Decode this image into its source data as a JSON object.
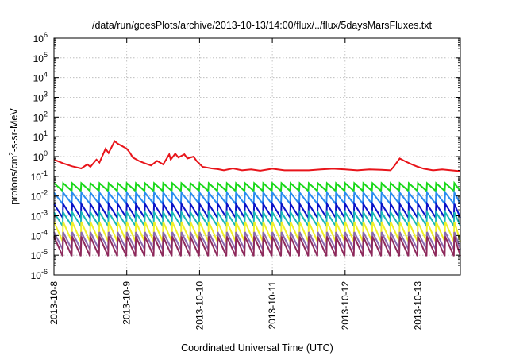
{
  "chart_data": {
    "type": "line",
    "title": "/data/run/goesPlots/archive/2013-10-13/14:00/flux/../flux/5daysMarsFluxes.txt",
    "xlabel": "Coordinated Universal Time (UTC)",
    "ylabel": {
      "prefix": "protons/cm",
      "superscript": "2",
      "suffix": "-s-sr-MeV"
    },
    "x_scale": "time",
    "xlim": [
      "2013-10-08T00:00",
      "2013-10-13T14:00"
    ],
    "x_ticks": [
      "2013-10-8",
      "2013-10-9",
      "2013-10-10",
      "2013-10-11",
      "2013-10-12",
      "2013-10-13"
    ],
    "x_tick_dates": [
      "2013-10-08T00:00",
      "2013-10-09T00:00",
      "2013-10-10T00:00",
      "2013-10-11T00:00",
      "2013-10-12T00:00",
      "2013-10-13T00:00"
    ],
    "y_scale": "log",
    "ylim": [
      1e-06,
      1000000.0
    ],
    "y_tick_exponents": [
      -6,
      -5,
      -4,
      -3,
      -2,
      -1,
      0,
      1,
      2,
      3,
      4,
      5,
      6
    ],
    "y_tick_base": "10",
    "grid": true,
    "legend": "none",
    "series": [
      {
        "color": "#e8141a",
        "x": [
          "2013-10-08T00:00",
          "2013-10-08T03:00",
          "2013-10-08T06:00",
          "2013-10-08T09:00",
          "2013-10-08T11:00",
          "2013-10-08T12:00",
          "2013-10-08T14:00",
          "2013-10-08T15:00",
          "2013-10-08T17:00",
          "2013-10-08T18:00",
          "2013-10-08T20:00",
          "2013-10-08T21:00",
          "2013-10-09T00:00",
          "2013-10-09T01:00",
          "2013-10-09T02:00",
          "2013-10-09T04:00",
          "2013-10-09T06:00",
          "2013-10-09T08:00",
          "2013-10-09T10:00",
          "2013-10-09T12:00",
          "2013-10-09T14:00",
          "2013-10-09T14:30",
          "2013-10-09T16:00",
          "2013-10-09T17:00",
          "2013-10-09T19:00",
          "2013-10-09T20:00",
          "2013-10-09T22:00",
          "2013-10-09T23:00",
          "2013-10-10T01:00",
          "2013-10-10T04:00",
          "2013-10-10T06:00",
          "2013-10-10T08:00",
          "2013-10-10T11:00",
          "2013-10-10T14:00",
          "2013-10-10T17:00",
          "2013-10-10T20:00",
          "2013-10-11T00:00",
          "2013-10-11T04:00",
          "2013-10-11T08:00",
          "2013-10-11T12:00",
          "2013-10-11T16:00",
          "2013-10-11T20:00",
          "2013-10-12T00:00",
          "2013-10-12T04:00",
          "2013-10-12T08:00",
          "2013-10-12T12:00",
          "2013-10-12T15:00",
          "2013-10-12T16:00",
          "2013-10-12T18:00",
          "2013-10-12T20:00",
          "2013-10-12T22:00",
          "2013-10-13T00:00",
          "2013-10-13T02:00",
          "2013-10-13T05:00",
          "2013-10-13T08:00",
          "2013-10-13T11:00",
          "2013-10-13T14:00"
        ],
        "y": [
          0.7,
          0.45,
          0.32,
          0.25,
          0.4,
          0.3,
          0.7,
          0.5,
          2.5,
          1.5,
          6,
          4.5,
          2.5,
          1.6,
          0.9,
          0.6,
          0.45,
          0.35,
          0.6,
          0.4,
          1.3,
          0.7,
          1.4,
          0.9,
          1.3,
          0.8,
          1.0,
          0.6,
          0.3,
          0.25,
          0.23,
          0.2,
          0.25,
          0.2,
          0.22,
          0.19,
          0.24,
          0.2,
          0.2,
          0.2,
          0.22,
          0.24,
          0.22,
          0.2,
          0.22,
          0.21,
          0.2,
          0.3,
          0.8,
          0.55,
          0.4,
          0.3,
          0.24,
          0.2,
          0.22,
          0.2,
          0.18
        ]
      },
      {
        "color": "#1ad81a",
        "x": [
          "2013-10-08T00:00",
          "2013-10-13T14:00"
        ],
        "y_range": [
          0.018,
          0.045
        ],
        "cycle_hours": 3
      },
      {
        "color": "#2a8cf0",
        "x": [
          "2013-10-08T00:00",
          "2013-10-13T14:00"
        ],
        "y_range": [
          0.004,
          0.015
        ],
        "cycle_hours": 3
      },
      {
        "color": "#0a12c8",
        "x": [
          "2013-10-08T00:00",
          "2013-10-13T14:00"
        ],
        "y_range": [
          0.0008,
          0.004
        ],
        "cycle_hours": 3
      },
      {
        "color": "#18b8b8",
        "x": [
          "2013-10-08T00:00",
          "2013-10-13T14:00"
        ],
        "y_range": [
          0.0003,
          0.0015
        ],
        "cycle_hours": 3
      },
      {
        "color": "#f0f028",
        "x": [
          "2013-10-08T00:00",
          "2013-10-13T14:00"
        ],
        "y_range": [
          5e-05,
          0.0005
        ],
        "cycle_hours": 3
      },
      {
        "color": "#8a6ab0",
        "x": [
          "2013-10-08T00:00",
          "2013-10-13T14:00"
        ],
        "y_range": [
          2e-05,
          0.00015
        ],
        "cycle_hours": 3
      },
      {
        "color": "#8e2a5c",
        "x": [
          "2013-10-08T00:00",
          "2013-10-13T14:00"
        ],
        "y_range": [
          9e-06,
          9e-05
        ],
        "cycle_hours": 3
      }
    ]
  }
}
